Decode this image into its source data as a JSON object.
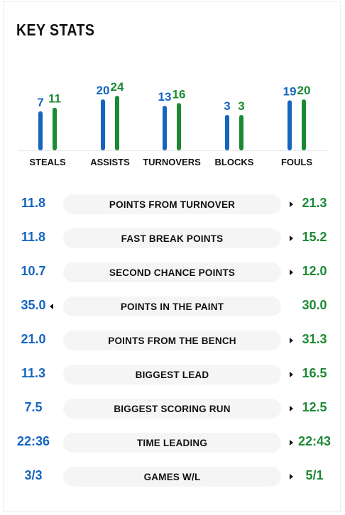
{
  "header": {
    "title": "KEY STATS"
  },
  "colors": {
    "home": "#1565c0",
    "away": "#1b8a34",
    "pill_bg": "#f5f5f5"
  },
  "chart_data": {
    "type": "bar",
    "categories": [
      "STEALS",
      "ASSISTS",
      "TURNOVERS",
      "BLOCKS",
      "FOULS"
    ],
    "series": [
      {
        "values": [
          7,
          20,
          13,
          3,
          19
        ]
      },
      {
        "values": [
          11,
          24,
          16,
          3,
          20
        ]
      }
    ],
    "title": "",
    "xlabel": "",
    "ylabel": ""
  },
  "comparisons": [
    {
      "label": "POINTS FROM TURNOVER",
      "home": "11.8",
      "away": "21.3",
      "arrow": "away"
    },
    {
      "label": "FAST BREAK POINTS",
      "home": "11.8",
      "away": "15.2",
      "arrow": "away"
    },
    {
      "label": "SECOND CHANCE POINTS",
      "home": "10.7",
      "away": "12.0",
      "arrow": "away"
    },
    {
      "label": "POINTS IN THE PAINT",
      "home": "35.0",
      "away": "30.0",
      "arrow": "home"
    },
    {
      "label": "POINTS FROM THE BENCH",
      "home": "21.0",
      "away": "31.3",
      "arrow": "away"
    },
    {
      "label": "BIGGEST LEAD",
      "home": "11.3",
      "away": "16.5",
      "arrow": "away"
    },
    {
      "label": "BIGGEST SCORING RUN",
      "home": "7.5",
      "away": "12.5",
      "arrow": "away"
    },
    {
      "label": "TIME LEADING",
      "home": "22:36",
      "away": "22:43",
      "arrow": "away"
    },
    {
      "label": "GAMES W/L",
      "home": "3/3",
      "away": "5/1",
      "arrow": "away"
    }
  ]
}
